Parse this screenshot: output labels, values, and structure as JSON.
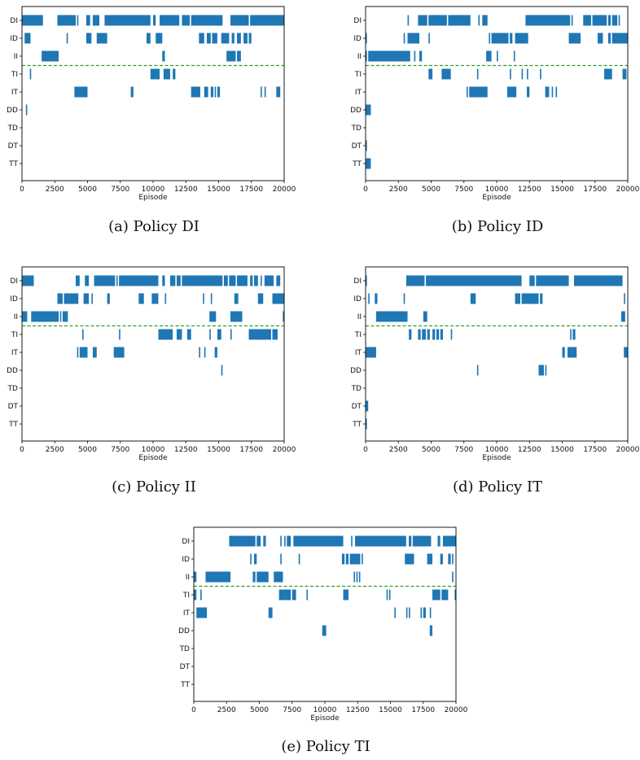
{
  "figure": {
    "captions": [
      "(a) Policy DI",
      "(b) Policy ID",
      "(c) Policy II",
      "(d) Policy IT",
      "(e) Policy TI"
    ]
  },
  "colors": {
    "bar": "#1f77b4",
    "divider": "#2ca02c",
    "axis": "#000000"
  },
  "chart_data": [
    {
      "type": "event-raster",
      "caption": "(a) Policy DI",
      "xlabel": "Episode",
      "xlim": [
        0,
        20000
      ],
      "xticks": [
        0,
        2500,
        5000,
        7500,
        10000,
        12500,
        15000,
        17500,
        20000
      ],
      "categories": [
        "DI",
        "ID",
        "II",
        "TI",
        "IT",
        "DD",
        "TD",
        "DT",
        "TT"
      ],
      "divider_after": "II",
      "intervals": {
        "DI": [
          [
            0,
            1600
          ],
          [
            2700,
            4100
          ],
          [
            4200,
            4300
          ],
          [
            4900,
            5200
          ],
          [
            5400,
            5900
          ],
          [
            6300,
            9800
          ],
          [
            10000,
            10200
          ],
          [
            10500,
            12000
          ],
          [
            12200,
            12800
          ],
          [
            12900,
            15300
          ],
          [
            15900,
            17300
          ],
          [
            17400,
            20000
          ]
        ],
        "ID": [
          [
            200,
            650
          ],
          [
            3400,
            3500
          ],
          [
            4900,
            5300
          ],
          [
            5700,
            6500
          ],
          [
            9500,
            9800
          ],
          [
            10200,
            10700
          ],
          [
            13500,
            13900
          ],
          [
            14100,
            14400
          ],
          [
            14500,
            14900
          ],
          [
            15200,
            15800
          ],
          [
            16000,
            16200
          ],
          [
            16400,
            16700
          ],
          [
            16900,
            17200
          ],
          [
            17300,
            17500
          ]
        ],
        "II": [
          [
            1500,
            2800
          ],
          [
            10700,
            10900
          ],
          [
            15600,
            16300
          ],
          [
            16400,
            16700
          ]
        ],
        "TI": [
          [
            600,
            700
          ],
          [
            9800,
            10500
          ],
          [
            10800,
            11300
          ],
          [
            11500,
            11700
          ]
        ],
        "IT": [
          [
            4000,
            5000
          ],
          [
            8300,
            8500
          ],
          [
            12900,
            13600
          ],
          [
            13900,
            14200
          ],
          [
            14400,
            14600
          ],
          [
            14700,
            14800
          ],
          [
            14900,
            15100
          ],
          [
            18200,
            18300
          ],
          [
            18500,
            18600
          ],
          [
            19400,
            19700
          ]
        ],
        "DD": [
          [
            300,
            400
          ]
        ],
        "TD": [],
        "DT": [],
        "TT": []
      }
    },
    {
      "type": "event-raster",
      "caption": "(b) Policy ID",
      "xlabel": "Episode",
      "xlim": [
        0,
        20000
      ],
      "xticks": [
        0,
        2500,
        5000,
        7500,
        10000,
        12500,
        15000,
        17500,
        20000
      ],
      "categories": [
        "DI",
        "ID",
        "II",
        "TI",
        "IT",
        "DD",
        "TD",
        "DT",
        "TT"
      ],
      "divider_after": "II",
      "intervals": {
        "DI": [
          [
            3200,
            3300
          ],
          [
            4000,
            4700
          ],
          [
            4800,
            6200
          ],
          [
            6300,
            8000
          ],
          [
            8600,
            8700
          ],
          [
            8900,
            9300
          ],
          [
            12200,
            15600
          ],
          [
            15700,
            15800
          ],
          [
            16600,
            17200
          ],
          [
            17300,
            18400
          ],
          [
            18500,
            18700
          ],
          [
            18800,
            19200
          ],
          [
            19300,
            19400
          ]
        ],
        "ID": [
          [
            0,
            100
          ],
          [
            2900,
            3000
          ],
          [
            3200,
            4100
          ],
          [
            4800,
            4900
          ],
          [
            9400,
            9500
          ],
          [
            9600,
            10900
          ],
          [
            11000,
            11200
          ],
          [
            11400,
            12400
          ],
          [
            15500,
            16400
          ],
          [
            17700,
            18100
          ],
          [
            18500,
            18700
          ],
          [
            18800,
            20000
          ]
        ],
        "II": [
          [
            0,
            100
          ],
          [
            200,
            3400
          ],
          [
            3700,
            3800
          ],
          [
            4100,
            4300
          ],
          [
            9200,
            9600
          ],
          [
            10000,
            10100
          ],
          [
            11300,
            11400
          ]
        ],
        "TI": [
          [
            4800,
            5100
          ],
          [
            5800,
            6500
          ],
          [
            8500,
            8600
          ],
          [
            11000,
            11100
          ],
          [
            11900,
            12000
          ],
          [
            12300,
            12400
          ],
          [
            13300,
            13400
          ],
          [
            18200,
            18800
          ],
          [
            19600,
            19900
          ]
        ],
        "IT": [
          [
            7700,
            7800
          ],
          [
            7900,
            9300
          ],
          [
            10800,
            11500
          ],
          [
            12300,
            12500
          ],
          [
            13700,
            14000
          ],
          [
            14200,
            14300
          ],
          [
            14500,
            14600
          ]
        ],
        "DD": [
          [
            0,
            400
          ]
        ],
        "TD": [],
        "DT": [
          [
            0,
            100
          ]
        ],
        "TT": [
          [
            0,
            400
          ]
        ]
      }
    },
    {
      "type": "event-raster",
      "caption": "(c) Policy II",
      "xlabel": "Episode",
      "xlim": [
        0,
        20000
      ],
      "xticks": [
        0,
        2500,
        5000,
        7500,
        10000,
        12500,
        15000,
        17500,
        20000
      ],
      "categories": [
        "DI",
        "ID",
        "II",
        "TI",
        "IT",
        "DD",
        "TD",
        "DT",
        "TT"
      ],
      "divider_after": "II",
      "intervals": {
        "DI": [
          [
            0,
            900
          ],
          [
            4100,
            4400
          ],
          [
            4800,
            5100
          ],
          [
            5500,
            7100
          ],
          [
            7200,
            7300
          ],
          [
            7400,
            10400
          ],
          [
            10700,
            10900
          ],
          [
            11300,
            11700
          ],
          [
            11800,
            12100
          ],
          [
            12200,
            15300
          ],
          [
            15400,
            15700
          ],
          [
            15800,
            16300
          ],
          [
            16400,
            17200
          ],
          [
            17400,
            17600
          ],
          [
            17700,
            18000
          ],
          [
            18200,
            18300
          ],
          [
            18500,
            19200
          ],
          [
            19400,
            19700
          ]
        ],
        "ID": [
          [
            2700,
            3100
          ],
          [
            3200,
            4300
          ],
          [
            4700,
            5100
          ],
          [
            5300,
            5400
          ],
          [
            6500,
            6700
          ],
          [
            8900,
            9300
          ],
          [
            9900,
            10400
          ],
          [
            10900,
            11000
          ],
          [
            13800,
            13900
          ],
          [
            14400,
            14500
          ],
          [
            16200,
            16500
          ],
          [
            18000,
            18400
          ],
          [
            19100,
            20000
          ]
        ],
        "II": [
          [
            0,
            400
          ],
          [
            700,
            2800
          ],
          [
            2900,
            3000
          ],
          [
            3100,
            3500
          ],
          [
            14300,
            14800
          ],
          [
            15900,
            16800
          ],
          [
            19900,
            20000
          ]
        ],
        "TI": [
          [
            4600,
            4700
          ],
          [
            7400,
            7500
          ],
          [
            10400,
            11500
          ],
          [
            11800,
            12200
          ],
          [
            12600,
            12900
          ],
          [
            14300,
            14400
          ],
          [
            14900,
            15200
          ],
          [
            15900,
            16000
          ],
          [
            17300,
            19000
          ],
          [
            19100,
            19500
          ]
        ],
        "IT": [
          [
            4200,
            4300
          ],
          [
            4400,
            5000
          ],
          [
            5400,
            5700
          ],
          [
            7000,
            7800
          ],
          [
            13500,
            13600
          ],
          [
            13900,
            14000
          ],
          [
            14700,
            14900
          ]
        ],
        "DD": [
          [
            15200,
            15300
          ]
        ],
        "TD": [],
        "DT": [],
        "TT": []
      }
    },
    {
      "type": "event-raster",
      "caption": "(d) Policy IT",
      "xlabel": "Episode",
      "xlim": [
        0,
        20000
      ],
      "xticks": [
        0,
        2500,
        5000,
        7500,
        10000,
        12500,
        15000,
        17500,
        20000
      ],
      "categories": [
        "DI",
        "ID",
        "II",
        "TI",
        "IT",
        "DD",
        "TD",
        "DT",
        "TT"
      ],
      "divider_after": "II",
      "intervals": {
        "DI": [
          [
            0,
            100
          ],
          [
            3100,
            4500
          ],
          [
            4600,
            11900
          ],
          [
            12500,
            12900
          ],
          [
            13000,
            15500
          ],
          [
            15900,
            19600
          ]
        ],
        "ID": [
          [
            200,
            300
          ],
          [
            700,
            900
          ],
          [
            2900,
            3000
          ],
          [
            8000,
            8400
          ],
          [
            11400,
            11800
          ],
          [
            11900,
            13200
          ],
          [
            13300,
            13500
          ],
          [
            19700,
            19800
          ]
        ],
        "II": [
          [
            800,
            3200
          ],
          [
            4400,
            4700
          ],
          [
            19500,
            19800
          ]
        ],
        "TI": [
          [
            3300,
            3500
          ],
          [
            4000,
            4200
          ],
          [
            4300,
            4600
          ],
          [
            4700,
            4900
          ],
          [
            5100,
            5300
          ],
          [
            5400,
            5600
          ],
          [
            5700,
            5900
          ],
          [
            6500,
            6600
          ],
          [
            15600,
            15700
          ],
          [
            15800,
            16000
          ]
        ],
        "IT": [
          [
            0,
            800
          ],
          [
            15000,
            15200
          ],
          [
            15400,
            16100
          ],
          [
            19700,
            20000
          ]
        ],
        "DD": [
          [
            8500,
            8600
          ],
          [
            13200,
            13600
          ],
          [
            13700,
            13800
          ]
        ],
        "TD": [],
        "DT": [
          [
            0,
            200
          ]
        ],
        "TT": [
          [
            0,
            100
          ]
        ]
      }
    },
    {
      "type": "event-raster",
      "caption": "(e) Policy TI",
      "xlabel": "Episode",
      "xlim": [
        0,
        20000
      ],
      "xticks": [
        0,
        2500,
        5000,
        7500,
        10000,
        12500,
        15000,
        17500,
        20000
      ],
      "categories": [
        "DI",
        "ID",
        "II",
        "TI",
        "IT",
        "DD",
        "TD",
        "DT",
        "TT"
      ],
      "divider_after": "II",
      "intervals": {
        "DI": [
          [
            2700,
            4700
          ],
          [
            4800,
            5100
          ],
          [
            5300,
            5500
          ],
          [
            6600,
            6700
          ],
          [
            6900,
            7000
          ],
          [
            7100,
            7400
          ],
          [
            7600,
            11400
          ],
          [
            12000,
            12100
          ],
          [
            12300,
            16200
          ],
          [
            16400,
            16600
          ],
          [
            16700,
            18100
          ],
          [
            18600,
            18800
          ],
          [
            19000,
            20000
          ]
        ],
        "ID": [
          [
            4300,
            4400
          ],
          [
            4600,
            4800
          ],
          [
            6600,
            6700
          ],
          [
            8000,
            8100
          ],
          [
            11300,
            11500
          ],
          [
            11600,
            11800
          ],
          [
            11900,
            12700
          ],
          [
            12800,
            12900
          ],
          [
            16100,
            16800
          ],
          [
            17800,
            18200
          ],
          [
            18800,
            19000
          ],
          [
            19400,
            19600
          ],
          [
            19700,
            19800
          ]
        ],
        "II": [
          [
            0,
            200
          ],
          [
            900,
            2800
          ],
          [
            4500,
            4700
          ],
          [
            4800,
            5700
          ],
          [
            6100,
            6800
          ],
          [
            12200,
            12300
          ],
          [
            12400,
            12500
          ],
          [
            12600,
            12700
          ],
          [
            19700,
            19800
          ]
        ],
        "TI": [
          [
            0,
            200
          ],
          [
            500,
            600
          ],
          [
            6500,
            7400
          ],
          [
            7500,
            7800
          ],
          [
            8600,
            8700
          ],
          [
            11400,
            11800
          ],
          [
            14700,
            14800
          ],
          [
            14900,
            15000
          ],
          [
            18200,
            18800
          ],
          [
            18900,
            19400
          ],
          [
            19900,
            20000
          ]
        ],
        "IT": [
          [
            200,
            1000
          ],
          [
            5700,
            6000
          ],
          [
            15300,
            15400
          ],
          [
            16200,
            16300
          ],
          [
            16400,
            16500
          ],
          [
            17300,
            17400
          ],
          [
            17500,
            17700
          ],
          [
            18000,
            18100
          ]
        ],
        "DD": [
          [
            9800,
            10100
          ],
          [
            18000,
            18200
          ]
        ],
        "TD": [],
        "DT": [],
        "TT": []
      }
    }
  ]
}
